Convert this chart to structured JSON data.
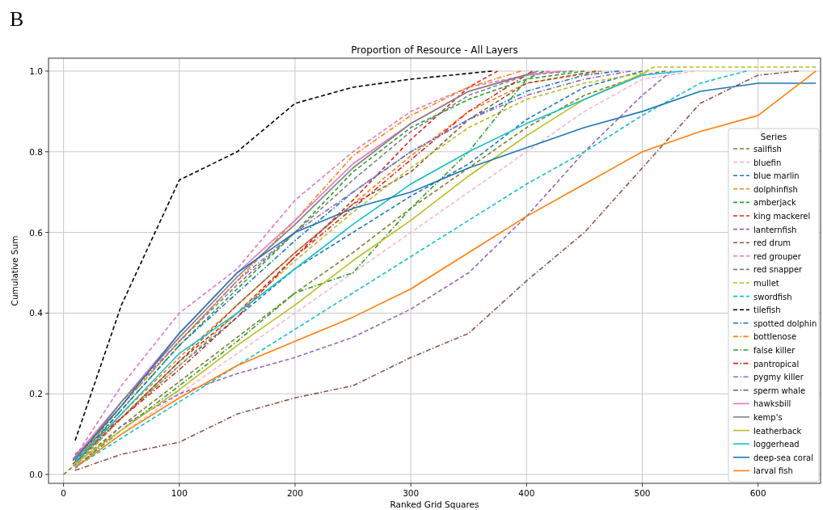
{
  "chart_data": {
    "type": "line",
    "title": "Proportion of Resource - All Layers",
    "xlabel": "Ranked Grid Squares",
    "ylabel": "Cumulative Sum",
    "legend_title": "Series",
    "annotations": [
      "B"
    ],
    "xlim": [
      -13,
      654
    ],
    "xticks": [
      0,
      100,
      200,
      300,
      400,
      500,
      600
    ],
    "ylim": [
      -0.022,
      1.032
    ],
    "yticks": [
      {
        "value": 0,
        "label": "0.0"
      },
      {
        "value": 0.2,
        "label": "0.2"
      },
      {
        "value": 0.4,
        "label": "0.4"
      },
      {
        "value": 0.6,
        "label": "0.6"
      },
      {
        "value": 0.8,
        "label": "0.8"
      },
      {
        "value": 1,
        "label": "1.0"
      }
    ],
    "grid": true,
    "legend": "bottom right",
    "series": [
      {
        "name": "sailfish",
        "color": "#7f7f2a",
        "line_style": "dashed",
        "x": [
          0,
          10,
          50,
          100,
          150,
          200,
          250,
          300,
          350,
          400,
          450,
          500,
          520
        ],
        "values": [
          0,
          0.024,
          0.12,
          0.23,
          0.34,
          0.45,
          0.55,
          0.66,
          0.76,
          0.86,
          0.94,
          0.99,
          1
        ]
      },
      {
        "name": "bluefin",
        "color": "#f7b6d2",
        "line_style": "dashed",
        "x": [
          10,
          50,
          100,
          150,
          200,
          250,
          300,
          350,
          400,
          450,
          500,
          545
        ],
        "values": [
          0.02,
          0.1,
          0.2,
          0.3,
          0.4,
          0.5,
          0.6,
          0.7,
          0.8,
          0.9,
          0.98,
          1
        ]
      },
      {
        "name": "blue marlin",
        "color": "#1f77b4",
        "line_style": "dashed",
        "x": [
          10,
          50,
          100,
          150,
          200,
          250,
          300,
          350,
          400,
          450,
          500
        ],
        "values": [
          0.028,
          0.14,
          0.27,
          0.39,
          0.51,
          0.6,
          0.69,
          0.77,
          0.88,
          0.96,
          1
        ]
      },
      {
        "name": "dolphinfish",
        "color": "#ff7f0e",
        "line_style": "dashed",
        "x": [
          16,
          50,
          100,
          150,
          200,
          250,
          300,
          350,
          400,
          465
        ],
        "values": [
          0.045,
          0.15,
          0.29,
          0.42,
          0.55,
          0.67,
          0.79,
          0.9,
          0.97,
          1
        ]
      },
      {
        "name": "amberjack",
        "color": "#2ca02c",
        "line_style": "dashed",
        "x": [
          10,
          50,
          100,
          150,
          200,
          250,
          300,
          350,
          400,
          450
        ],
        "values": [
          0.033,
          0.16,
          0.32,
          0.46,
          0.6,
          0.75,
          0.86,
          0.93,
          0.98,
          1
        ]
      },
      {
        "name": "king mackerel",
        "color": "#d62728",
        "line_style": "dashed",
        "x": [
          10,
          50,
          100,
          150,
          200,
          250,
          300,
          350,
          375
        ],
        "values": [
          0.05,
          0.14,
          0.28,
          0.4,
          0.54,
          0.68,
          0.83,
          0.96,
          1
        ]
      },
      {
        "name": "lanternfish",
        "color": "#9467bd",
        "line_style": "dashed",
        "x": [
          10,
          50,
          100,
          150,
          200,
          250,
          300,
          350,
          400,
          450,
          500,
          525
        ],
        "values": [
          0.015,
          0.12,
          0.2,
          0.25,
          0.29,
          0.34,
          0.41,
          0.5,
          0.64,
          0.8,
          0.94,
          1
        ]
      },
      {
        "name": "red drum",
        "color": "#8c564b",
        "line_style": "dashed",
        "x": [
          12,
          50,
          100,
          150,
          200,
          250,
          300,
          350,
          400,
          460
        ],
        "values": [
          0.027,
          0.14,
          0.28,
          0.42,
          0.55,
          0.67,
          0.75,
          0.88,
          0.97,
          1
        ]
      },
      {
        "name": "red grouper",
        "color": "#e377c2",
        "line_style": "dashed",
        "x": [
          10,
          50,
          100,
          150,
          200,
          250,
          300,
          350,
          400,
          420
        ],
        "values": [
          0.044,
          0.22,
          0.4,
          0.51,
          0.68,
          0.8,
          0.9,
          0.96,
          0.99,
          1
        ]
      },
      {
        "name": "red snapper",
        "color": "#7f7f7f",
        "line_style": "dashed",
        "x": [
          12,
          50,
          100,
          150,
          200,
          250,
          300,
          350,
          400,
          440
        ],
        "values": [
          0.036,
          0.17,
          0.33,
          0.47,
          0.6,
          0.73,
          0.85,
          0.94,
          0.99,
          1
        ]
      },
      {
        "name": "mullet",
        "color": "#bcbd22",
        "line_style": "dashed",
        "x": [
          12,
          50,
          100,
          150,
          200,
          250,
          300,
          350,
          400,
          450,
          500,
          510,
          650
        ],
        "values": [
          0.029,
          0.14,
          0.27,
          0.4,
          0.53,
          0.65,
          0.76,
          0.86,
          0.93,
          0.97,
          0.995,
          1.01,
          1.01
        ]
      },
      {
        "name": "swordfish",
        "color": "#17becf",
        "line_style": "dashed",
        "x": [
          10,
          50,
          100,
          150,
          200,
          250,
          300,
          350,
          400,
          450,
          500,
          550,
          590
        ],
        "values": [
          0.018,
          0.09,
          0.18,
          0.27,
          0.36,
          0.45,
          0.54,
          0.63,
          0.72,
          0.8,
          0.89,
          0.97,
          1
        ]
      },
      {
        "name": "tilefish",
        "color": "#000000",
        "line_style": "dashed",
        "x": [
          10,
          50,
          100,
          150,
          200,
          250,
          300,
          370
        ],
        "values": [
          0.084,
          0.42,
          0.73,
          0.8,
          0.92,
          0.96,
          0.98,
          1
        ]
      },
      {
        "name": "spotted dolphin",
        "color": "#1f77b4",
        "line_style": "dashdot",
        "x": [
          12,
          50,
          100,
          150,
          200,
          250,
          300,
          350,
          400,
          450,
          480
        ],
        "values": [
          0.032,
          0.16,
          0.32,
          0.45,
          0.58,
          0.7,
          0.8,
          0.88,
          0.95,
          0.99,
          1
        ]
      },
      {
        "name": "bottlenose",
        "color": "#ff7f0e",
        "line_style": "dashdot",
        "x": [
          19,
          50,
          100,
          150,
          200,
          250,
          300,
          350,
          395
        ],
        "values": [
          0.064,
          0.17,
          0.33,
          0.48,
          0.63,
          0.79,
          0.89,
          0.96,
          1
        ]
      },
      {
        "name": "false killer",
        "color": "#2ca02c",
        "line_style": "dashdot",
        "x": [
          12,
          50,
          100,
          150,
          200,
          250,
          300,
          350,
          400,
          415
        ],
        "values": [
          0.022,
          0.11,
          0.22,
          0.33,
          0.45,
          0.5,
          0.66,
          0.8,
          0.98,
          1
        ]
      },
      {
        "name": "pantropical",
        "color": "#d62728",
        "line_style": "dashdot",
        "x": [
          8,
          50,
          100,
          150,
          200,
          250,
          300,
          350,
          405
        ],
        "values": [
          0.026,
          0.14,
          0.26,
          0.39,
          0.54,
          0.66,
          0.78,
          0.9,
          1
        ]
      },
      {
        "name": "pygmy killer",
        "color": "#9467bd",
        "line_style": "dashdot",
        "x": [
          14,
          50,
          100,
          150,
          200,
          250,
          300,
          350,
          400,
          450,
          490
        ],
        "values": [
          0.052,
          0.18,
          0.33,
          0.48,
          0.6,
          0.7,
          0.8,
          0.88,
          0.94,
          0.98,
          1
        ]
      },
      {
        "name": "sperm whale",
        "color": "#8c564b",
        "line_style": "dashdot",
        "x": [
          10,
          50,
          100,
          150,
          200,
          250,
          300,
          350,
          400,
          450,
          500,
          550,
          600,
          635
        ],
        "values": [
          0.01,
          0.05,
          0.08,
          0.15,
          0.19,
          0.22,
          0.29,
          0.35,
          0.48,
          0.6,
          0.76,
          0.92,
          0.99,
          1
        ]
      },
      {
        "name": "hawksbill",
        "color": "#e377c2",
        "line_style": "solid",
        "x": [
          8,
          50,
          100,
          150,
          200,
          250,
          300,
          350,
          400,
          430
        ],
        "values": [
          0.038,
          0.18,
          0.35,
          0.5,
          0.63,
          0.77,
          0.87,
          0.95,
          0.99,
          1
        ]
      },
      {
        "name": "kemp's",
        "color": "#7f7f7f",
        "line_style": "solid",
        "x": [
          10,
          50,
          100,
          150,
          200,
          250,
          300,
          350,
          410
        ],
        "values": [
          0.035,
          0.18,
          0.34,
          0.49,
          0.62,
          0.76,
          0.87,
          0.95,
          1
        ]
      },
      {
        "name": "leatherback",
        "color": "#bcbd22",
        "line_style": "solid",
        "x": [
          8,
          50,
          100,
          150,
          200,
          250,
          300,
          350,
          400,
          450,
          505
        ],
        "values": [
          0.023,
          0.11,
          0.21,
          0.32,
          0.42,
          0.53,
          0.63,
          0.74,
          0.84,
          0.93,
          1
        ]
      },
      {
        "name": "loggerhead",
        "color": "#17becf",
        "line_style": "solid",
        "x": [
          10,
          50,
          100,
          150,
          200,
          250,
          300,
          350,
          400,
          450,
          500,
          535
        ],
        "values": [
          0.03,
          0.15,
          0.3,
          0.4,
          0.51,
          0.62,
          0.72,
          0.8,
          0.87,
          0.93,
          0.99,
          1
        ]
      },
      {
        "name": "deep-sea coral",
        "color": "#1f77b4",
        "line_style": "solid",
        "x": [
          8,
          50,
          100,
          150,
          200,
          250,
          300,
          350,
          400,
          450,
          500,
          550,
          600,
          650
        ],
        "values": [
          0.034,
          0.17,
          0.35,
          0.5,
          0.6,
          0.66,
          0.7,
          0.76,
          0.81,
          0.86,
          0.9,
          0.95,
          0.97,
          0.97
        ]
      },
      {
        "name": "larval fish",
        "color": "#ff7f0e",
        "line_style": "solid",
        "x": [
          12,
          50,
          100,
          150,
          200,
          250,
          300,
          350,
          400,
          450,
          500,
          550,
          600,
          650
        ],
        "values": [
          0.021,
          0.1,
          0.19,
          0.27,
          0.33,
          0.39,
          0.46,
          0.55,
          0.64,
          0.72,
          0.8,
          0.85,
          0.89,
          1
        ]
      }
    ]
  }
}
